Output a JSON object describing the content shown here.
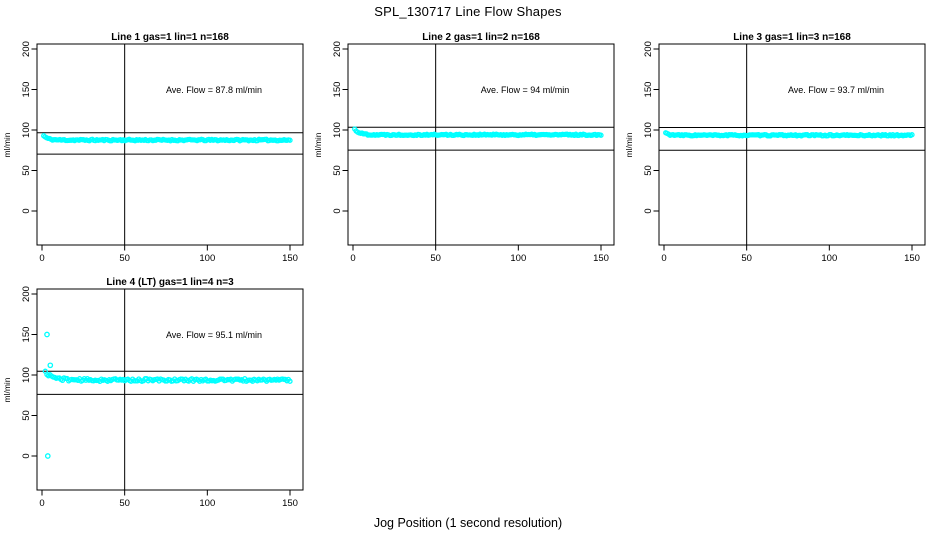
{
  "figure": {
    "title": "SPL_130717  Line Flow Shapes",
    "xlabel": "Jog Position (1 second resolution)",
    "ylabel": "ml/min",
    "background_color": "#ffffff",
    "point_color": "#00FFFF",
    "axis_color": "#000000"
  },
  "chart_data": [
    {
      "type": "scatter",
      "title": "Line 1 gas=1 lin=1 n=168",
      "annotation": "Ave. Flow =  87.8  ml/min",
      "ave_flow": 87.8,
      "n": 168,
      "x_ticks": [
        0,
        50,
        100,
        150
      ],
      "y_ticks": [
        0,
        50,
        100,
        150,
        200
      ],
      "xlim": [
        -3,
        158
      ],
      "ylim": [
        -41,
        209
      ],
      "vline_x": 50,
      "ref_lines": [
        96.6,
        70.2
      ],
      "band": {
        "x_start": 1,
        "x_end": 150,
        "n": 168,
        "y_start": 93,
        "y_settle": 87.6,
        "decay": 2.5,
        "noise": 0.9,
        "seed": 11
      },
      "outliers": [],
      "grid": false,
      "legend": false
    },
    {
      "type": "scatter",
      "title": "Line 2 gas=1 lin=2 n=168",
      "annotation": "Ave. Flow =  94  ml/min",
      "ave_flow": 94,
      "n": 168,
      "x_ticks": [
        0,
        50,
        100,
        150
      ],
      "y_ticks": [
        0,
        50,
        100,
        150,
        200
      ],
      "xlim": [
        -3,
        158
      ],
      "ylim": [
        -41,
        209
      ],
      "vline_x": 50,
      "ref_lines": [
        103.4,
        75.2
      ],
      "band": {
        "x_start": 1,
        "x_end": 150,
        "n": 168,
        "y_start": 101,
        "y_settle": 94.1,
        "decay": 3,
        "noise": 0.85,
        "seed": 22
      },
      "outliers": [],
      "grid": false,
      "legend": false
    },
    {
      "type": "scatter",
      "title": "Line 3 gas=1 lin=3 n=168",
      "annotation": "Ave. Flow =  93.7  ml/min",
      "ave_flow": 93.7,
      "n": 168,
      "x_ticks": [
        0,
        50,
        100,
        150
      ],
      "y_ticks": [
        0,
        50,
        100,
        150,
        200
      ],
      "xlim": [
        -3,
        158
      ],
      "ylim": [
        -41,
        209
      ],
      "vline_x": 50,
      "ref_lines": [
        103.1,
        75.0
      ],
      "band": {
        "x_start": 1,
        "x_end": 150,
        "n": 168,
        "y_start": 96.5,
        "y_settle": 93.5,
        "decay": 2,
        "noise": 0.8,
        "seed": 33
      },
      "outliers": [],
      "grid": false,
      "legend": false
    },
    {
      "type": "scatter",
      "title": "Line 4 (LT) gas=1 lin=4 n=3",
      "annotation": "Ave. Flow =  95.1  ml/min",
      "ave_flow": 95.1,
      "n": 3,
      "x_ticks": [
        0,
        50,
        100,
        150
      ],
      "y_ticks": [
        0,
        50,
        100,
        150,
        200
      ],
      "xlim": [
        -3,
        158
      ],
      "ylim": [
        -41,
        209
      ],
      "vline_x": 50,
      "ref_lines": [
        104.6,
        76.1
      ],
      "band": {
        "x_start": 2,
        "x_end": 150,
        "n": 158,
        "y_start": 103.5,
        "y_settle": 93.8,
        "decay": 5,
        "noise": 1.7,
        "seed": 44
      },
      "outliers": [
        [
          3,
          150
        ],
        [
          3.5,
          0
        ],
        [
          5,
          112
        ]
      ],
      "grid": false,
      "legend": false
    }
  ]
}
